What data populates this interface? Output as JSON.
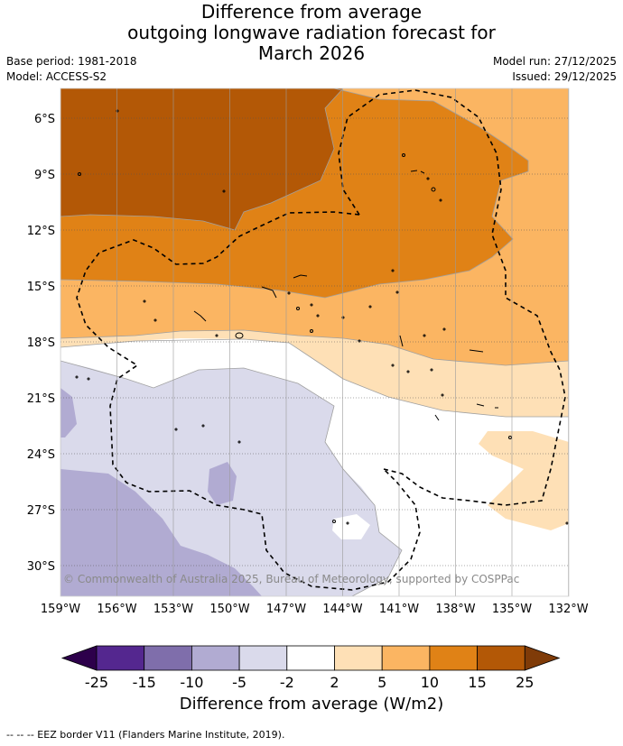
{
  "header": {
    "title_line1": "Difference from average",
    "title_line2": "outgoing longwave radiation forecast for",
    "title_line3": "March 2026",
    "base_period": "Base period: 1981-2018",
    "model": "Model: ACCESS-S2",
    "model_run": "Model run: 27/12/2025",
    "issued": "Issued: 29/12/2025"
  },
  "map": {
    "lat_labels": [
      "6°S",
      "9°S",
      "12°S",
      "15°S",
      "18°S",
      "21°S",
      "24°S",
      "27°S",
      "30°S"
    ],
    "lon_labels": [
      "159°W",
      "156°W",
      "153°W",
      "150°W",
      "147°W",
      "144°W",
      "141°W",
      "138°W",
      "135°W",
      "132°W"
    ],
    "copyright": "© Commonwealth of Australia 2025, Bureau of Meteorology, supported by COSPPac"
  },
  "colorbar": {
    "ticks": [
      "-25",
      "-15",
      "-10",
      "-5",
      "-2",
      "2",
      "5",
      "10",
      "15",
      "25"
    ],
    "colors": [
      "#54278f",
      "#7f6eab",
      "#b1abd2",
      "#dadaeb",
      "#ffffff",
      "#fee0b6",
      "#fbb562",
      "#e08216",
      "#b35806"
    ],
    "low_extend": "#2d004b",
    "high_extend": "#7f3b08",
    "title": "Difference from average (W/m2)"
  },
  "footnote": "--  --  -- EEZ border V11 (Flanders Marine Institute, 2019)."
}
